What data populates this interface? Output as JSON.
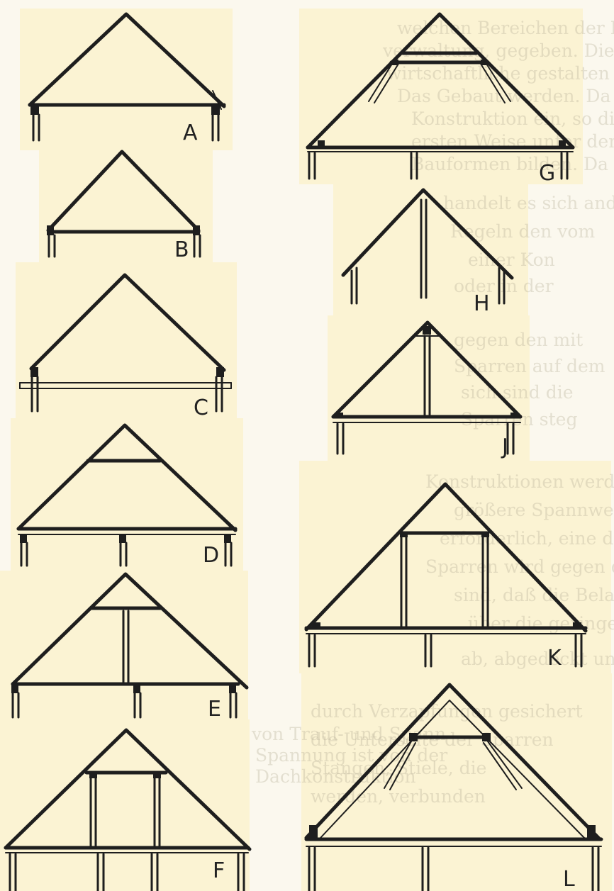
{
  "figure": {
    "labels": [
      "A",
      "B",
      "C",
      "D",
      "E",
      "F",
      "G",
      "H",
      "J",
      "K",
      "L"
    ],
    "background_text": [
      "welchen Bereichen der Kamer",
      "verwaltung, gegeben. Die Dach",
      "wirtschaftliche gestalten und",
      "Das Gebaut werden. Da",
      "Konstruktion ein, so die",
      "ersten Weise unter den",
      "Bauformen bilden. Da das",
      "handelt es sich andere",
      "Regeln den vom",
      "einer Kon",
      "oder in der",
      "gegen den mit",
      "Sparren auf dem",
      "sich sind die",
      "Sparren steg",
      "Konstruktionen werden der",
      "größere Spannweite ist",
      "erforderlich, eine durch",
      "Sparren wird gegen den",
      "sind, daß die Belastung der",
      "über die geringer wird",
      "ab, abgedeckt und ergeben",
      "durch Verzapfungen gesichert",
      "die Unterseite der Sparren",
      "Stangen, Stiele, die",
      "werden, verbunden",
      "von Trauf- und Spann",
      "Spannung ist von der",
      "Dachkonstruktion"
    ]
  }
}
